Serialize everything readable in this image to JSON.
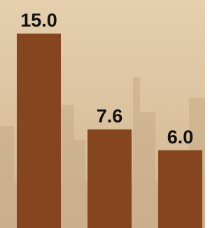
{
  "chart_data": {
    "type": "bar",
    "categories": [
      null,
      null,
      null
    ],
    "values": [
      15.0,
      7.6,
      6.0
    ],
    "value_labels": [
      "15.0",
      "7.6",
      "6.0"
    ],
    "color": "#85461f"
  }
}
